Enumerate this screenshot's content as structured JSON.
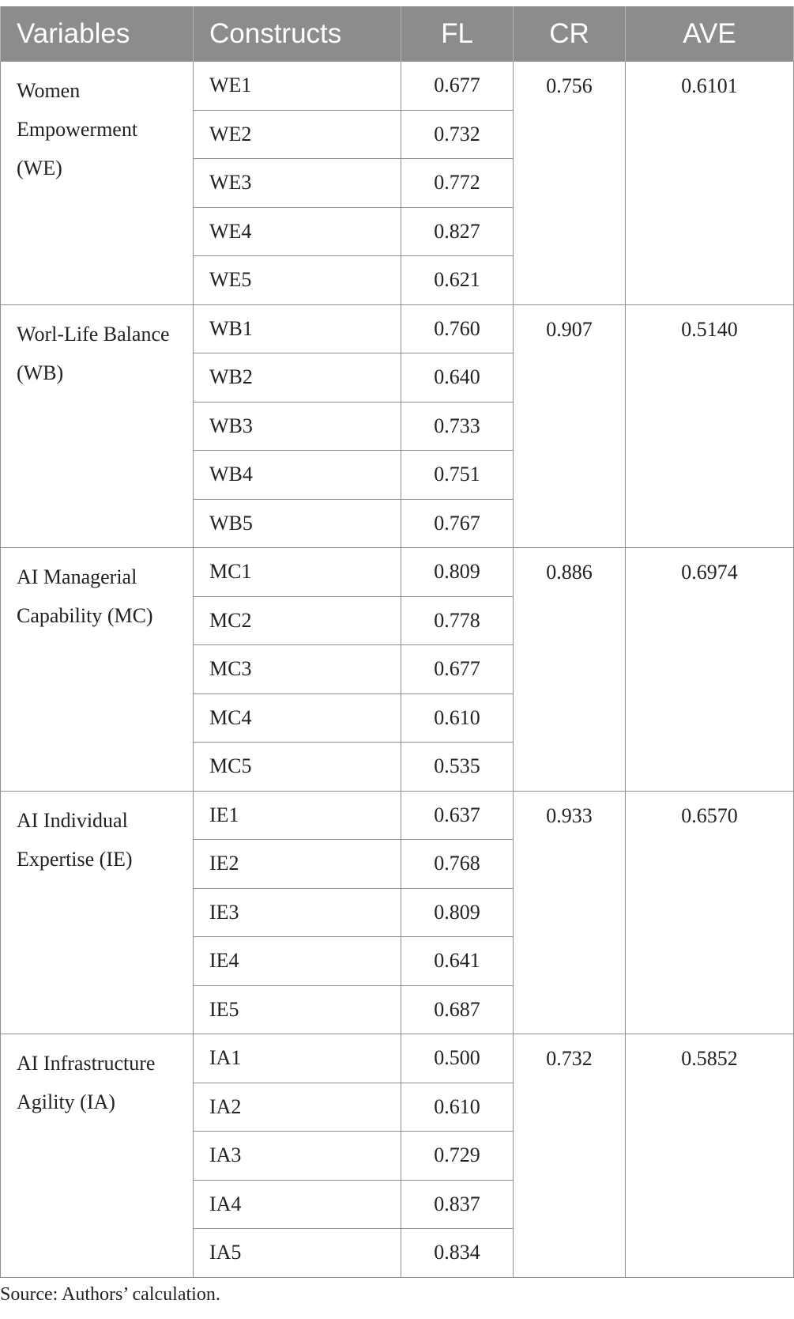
{
  "table": {
    "headers": [
      "Variables",
      "Constructs",
      "FL",
      "CR",
      "AVE"
    ],
    "groups": [
      {
        "variable": "Women Empowerment (WE)",
        "cr": "0.756",
        "ave": "0.6101",
        "rows": [
          {
            "construct": "WE1",
            "fl": "0.677"
          },
          {
            "construct": "WE2",
            "fl": "0.732"
          },
          {
            "construct": "WE3",
            "fl": "0.772"
          },
          {
            "construct": "WE4",
            "fl": "0.827"
          },
          {
            "construct": "WE5",
            "fl": "0.621"
          }
        ]
      },
      {
        "variable": "Worl-Life Balance (WB)",
        "cr": "0.907",
        "ave": "0.5140",
        "rows": [
          {
            "construct": "WB1",
            "fl": "0.760"
          },
          {
            "construct": "WB2",
            "fl": "0.640"
          },
          {
            "construct": "WB3",
            "fl": "0.733"
          },
          {
            "construct": "WB4",
            "fl": "0.751"
          },
          {
            "construct": "WB5",
            "fl": "0.767"
          }
        ]
      },
      {
        "variable": "AI Managerial Capability (MC)",
        "cr": "0.886",
        "ave": "0.6974",
        "rows": [
          {
            "construct": "MC1",
            "fl": "0.809"
          },
          {
            "construct": "MC2",
            "fl": "0.778"
          },
          {
            "construct": "MC3",
            "fl": "0.677"
          },
          {
            "construct": "MC4",
            "fl": "0.610"
          },
          {
            "construct": "MC5",
            "fl": "0.535"
          }
        ]
      },
      {
        "variable": "AI Individual Expertise (IE)",
        "cr": "0.933",
        "ave": "0.6570",
        "rows": [
          {
            "construct": "IE1",
            "fl": "0.637"
          },
          {
            "construct": "IE2",
            "fl": "0.768"
          },
          {
            "construct": "IE3",
            "fl": "0.809"
          },
          {
            "construct": "IE4",
            "fl": "0.641"
          },
          {
            "construct": "IE5",
            "fl": "0.687"
          }
        ]
      },
      {
        "variable": "AI Infrastructure Agility (IA)",
        "cr": "0.732",
        "ave": "0.5852",
        "rows": [
          {
            "construct": "IA1",
            "fl": "0.500"
          },
          {
            "construct": "IA2",
            "fl": "0.610"
          },
          {
            "construct": "IA3",
            "fl": "0.729"
          },
          {
            "construct": "IA4",
            "fl": "0.837"
          },
          {
            "construct": "IA5",
            "fl": "0.834"
          }
        ]
      }
    ]
  },
  "source": "Source: Authors’ calculation."
}
